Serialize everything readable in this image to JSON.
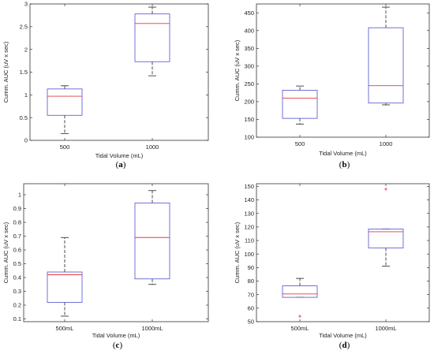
{
  "chart_data": [
    {
      "type": "boxplot",
      "panel_label": "(a)",
      "panel_letter": "a",
      "xlabel": "Tidal Volume (mL)",
      "ylabel": "Cumm. AUC (uV x sec)",
      "ylim": [
        0,
        3
      ],
      "yticks": [
        "0",
        "0.5",
        "1",
        "1.5",
        "2",
        "2.5",
        "3"
      ],
      "categories": [
        "500",
        "1000"
      ],
      "boxes": [
        {
          "whisker_low": 0.15,
          "q1": 0.55,
          "median": 0.97,
          "q3": 1.13,
          "whisker_high": 1.2,
          "outliers": []
        },
        {
          "whisker_low": 1.42,
          "q1": 1.73,
          "median": 2.57,
          "q3": 2.78,
          "whisker_high": 2.93,
          "outliers": []
        }
      ]
    },
    {
      "type": "boxplot",
      "panel_label": "(b)",
      "panel_letter": "b",
      "xlabel": "Tidal Volume (mL)",
      "ylabel": "Cumm. AUC (uV x sec)",
      "ylim": [
        100,
        475
      ],
      "yticks": [
        "100",
        "150",
        "200",
        "250",
        "300",
        "350",
        "400",
        "450"
      ],
      "categories": [
        "500",
        "1000"
      ],
      "boxes": [
        {
          "whisker_low": 137,
          "q1": 153,
          "median": 210,
          "q3": 232,
          "whisker_high": 244,
          "outliers": []
        },
        {
          "whisker_low": 191,
          "q1": 196,
          "median": 245,
          "q3": 408,
          "whisker_high": 466,
          "outliers": []
        }
      ]
    },
    {
      "type": "boxplot",
      "panel_label": "(c)",
      "panel_letter": "c",
      "xlabel": "Tidal Volume (mL)",
      "ylabel": "Cumm. AUC (uV x sec)",
      "ylim": [
        0.08,
        1.08
      ],
      "yticks": [
        "0.1",
        "0.2",
        "0.3",
        "0.4",
        "0.5",
        "0.6",
        "0.7",
        "0.8",
        "0.9",
        "1"
      ],
      "categories": [
        "500mL",
        "1000mL"
      ],
      "boxes": [
        {
          "whisker_low": 0.12,
          "q1": 0.22,
          "median": 0.42,
          "q3": 0.44,
          "whisker_high": 0.69,
          "outliers": []
        },
        {
          "whisker_low": 0.35,
          "q1": 0.39,
          "median": 0.69,
          "q3": 0.94,
          "whisker_high": 1.03,
          "outliers": []
        }
      ]
    },
    {
      "type": "boxplot",
      "panel_label": "(d)",
      "panel_letter": "d",
      "xlabel": "Tidal Volume (mL)",
      "ylabel": "Cumm. AUC (uV x sec)",
      "ylim": [
        50,
        152
      ],
      "yticks": [
        "50",
        "60",
        "70",
        "80",
        "90",
        "100",
        "110",
        "120",
        "130",
        "140",
        "150"
      ],
      "categories": [
        "500mL",
        "1000mL"
      ],
      "boxes": [
        {
          "whisker_low": 68,
          "q1": 68,
          "median": 70.5,
          "q3": 76.5,
          "whisker_high": 82,
          "outliers": [
            54
          ]
        },
        {
          "whisker_low": 91,
          "q1": 104.5,
          "median": 116.5,
          "q3": 118.5,
          "whisker_high": 118.5,
          "outliers": [
            148
          ]
        }
      ]
    }
  ],
  "colors": {
    "box": "#4f4fcf",
    "median": "#e8383d",
    "whisker": "#222222",
    "outlier": "#e8383d",
    "axes": "#333333"
  }
}
